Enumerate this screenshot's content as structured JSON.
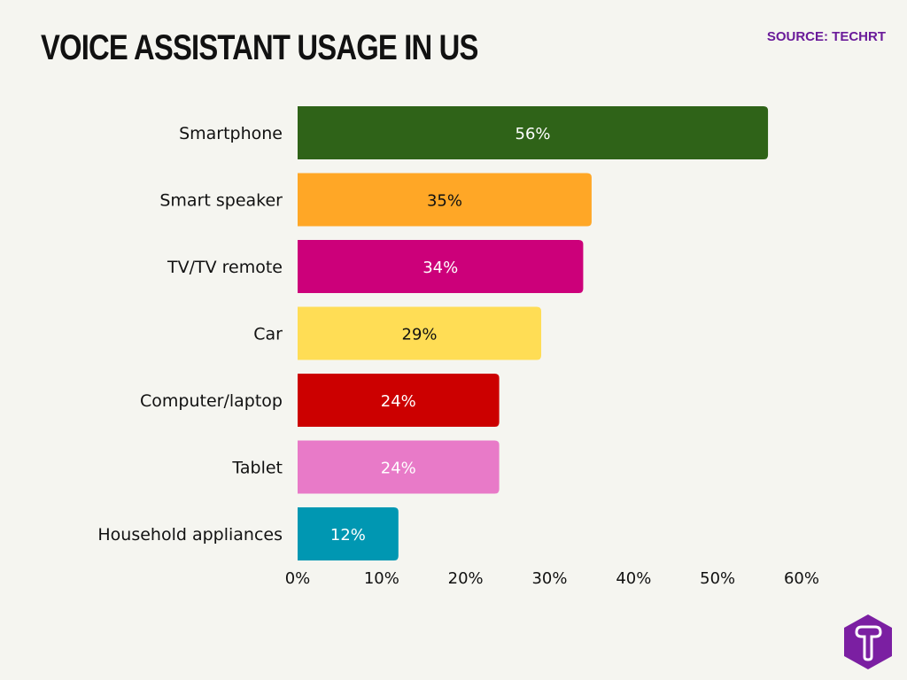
{
  "title": "VOICE ASSISTANT USAGE IN US",
  "source": "SOURCE: TECHRT",
  "logo": {
    "icon": "techrt-t-hexagon-logo",
    "color": "#7b1fa2"
  },
  "chart_data": {
    "type": "bar",
    "orientation": "horizontal",
    "title": "VOICE ASSISTANT USAGE IN US",
    "categories": [
      "Smartphone",
      "Smart speaker",
      "TV/TV remote",
      "Car",
      "Computer/laptop",
      "Tablet",
      "Household appliances"
    ],
    "values": [
      56,
      35,
      34,
      29,
      24,
      24,
      12
    ],
    "labels": [
      "56%",
      "35%",
      "34%",
      "29%",
      "24%",
      "24%",
      "12%"
    ],
    "colors": [
      "#2f6318",
      "#ffa726",
      "#cc007a",
      "#ffdd55",
      "#cc0000",
      "#e87ac8",
      "#0097b2"
    ],
    "label_colors": [
      "#ffffff",
      "#111111",
      "#ffffff",
      "#111111",
      "#ffffff",
      "#ffffff",
      "#ffffff"
    ],
    "xlim": [
      0,
      60
    ],
    "xticks": [
      0,
      10,
      20,
      30,
      40,
      50,
      60
    ],
    "xtick_labels": [
      "0%",
      "10%",
      "20%",
      "30%",
      "40%",
      "50%",
      "60%"
    ],
    "grid": false,
    "legend": "none"
  }
}
